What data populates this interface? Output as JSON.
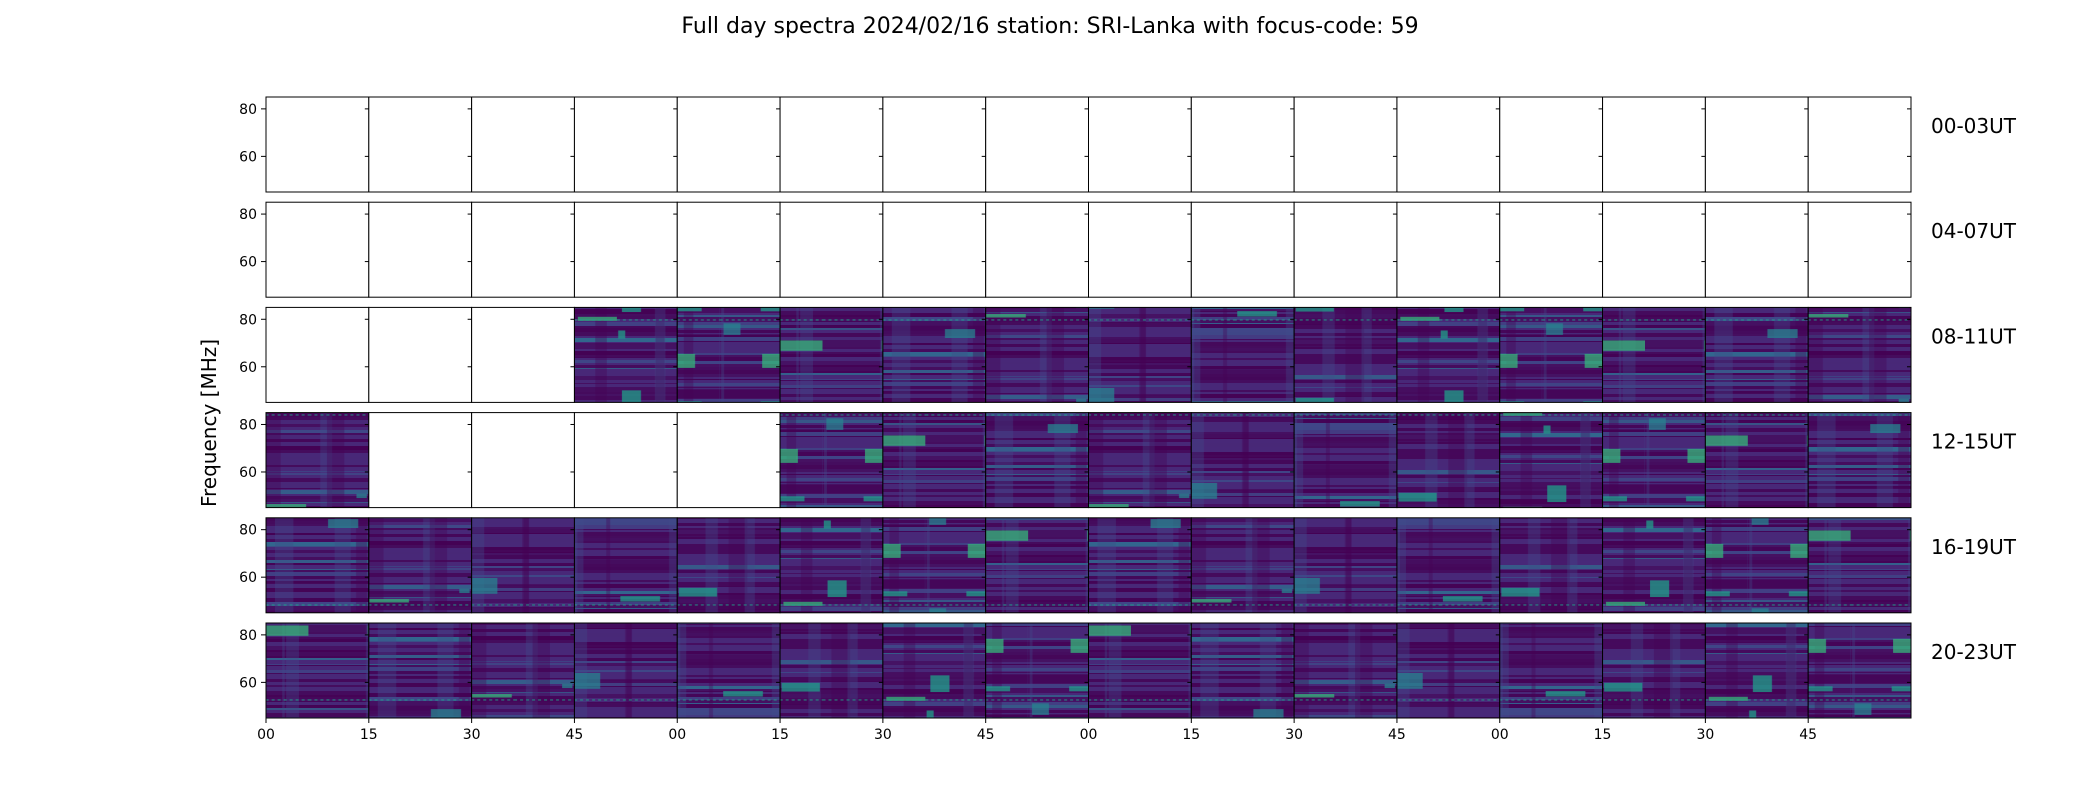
{
  "chart_data": {
    "type": "heatmap",
    "title": "Full day spectra 2024/02/16 station: SRI-Lanka with focus-code: 59",
    "ylabel": "Frequency [MHz]",
    "xlabel": "",
    "ylim": [
      45,
      85
    ],
    "yticks": [
      "80",
      "60"
    ],
    "ytick_values": [
      80,
      60
    ],
    "xticks": [
      "00",
      "15",
      "30",
      "45",
      "00",
      "15",
      "30",
      "45",
      "00",
      "15",
      "30",
      "45",
      "00",
      "15",
      "30",
      "45"
    ],
    "colormap": [
      "#440154",
      "#482878",
      "#3e4a89",
      "#31688e",
      "#26828e",
      "#1f9e89",
      "#35b779"
    ],
    "rows": [
      {
        "label": "00-03UT",
        "panels": [
          0,
          0,
          0,
          0,
          0,
          0,
          0,
          0,
          0,
          0,
          0,
          0,
          0,
          0,
          0,
          0
        ]
      },
      {
        "label": "04-07UT",
        "panels": [
          0,
          0,
          0,
          0,
          0,
          0,
          0,
          0,
          0,
          0,
          0,
          0,
          0,
          0,
          0,
          0
        ]
      },
      {
        "label": "08-11UT",
        "panels": [
          0,
          0,
          0,
          1,
          1,
          1,
          1,
          1,
          1,
          1,
          1,
          1,
          1,
          1,
          1,
          1
        ]
      },
      {
        "label": "12-15UT",
        "panels": [
          1,
          0,
          0,
          0,
          0,
          1,
          1,
          1,
          1,
          1,
          1,
          1,
          1,
          1,
          1,
          1
        ]
      },
      {
        "label": "16-19UT",
        "panels": [
          1,
          1,
          1,
          1,
          1,
          1,
          1,
          1,
          1,
          1,
          1,
          1,
          1,
          1,
          1,
          1
        ]
      },
      {
        "label": "20-23UT",
        "panels": [
          1,
          1,
          1,
          1,
          1,
          1,
          1,
          1,
          1,
          1,
          1,
          1,
          1,
          1,
          1,
          1
        ]
      }
    ]
  }
}
